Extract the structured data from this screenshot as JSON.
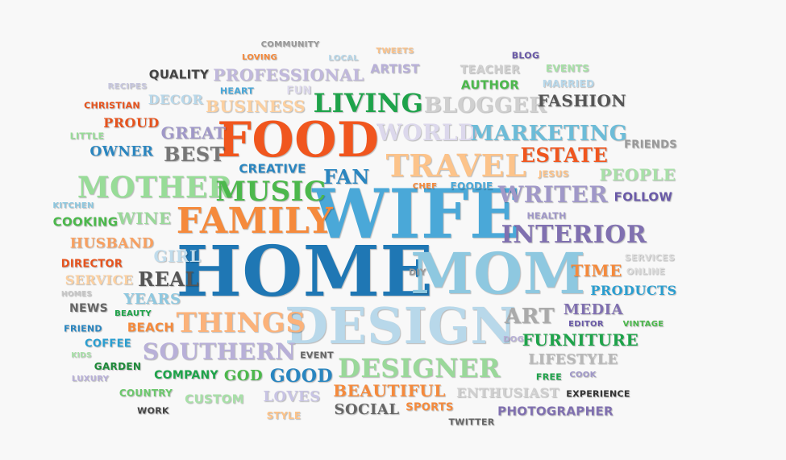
{
  "words": [
    {
      "text": "HOME",
      "color": "#1f77b4"
    },
    {
      "text": "WIFE",
      "color": "#4aa8d8"
    },
    {
      "text": "MOM",
      "color": "#8ec8e0"
    },
    {
      "text": "DESIGN",
      "color": "#b8d8ea"
    },
    {
      "text": "FOOD",
      "color": "#f0561e"
    },
    {
      "text": "FAMILY",
      "color": "#f58a3c"
    },
    {
      "text": "TRAVEL",
      "color": "#fcc38a"
    },
    {
      "text": "MOTHER",
      "color": "#98dc98"
    },
    {
      "text": "MUSIC",
      "color": "#4cb84c"
    },
    {
      "text": "THINGS",
      "color": "#fbb27a"
    },
    {
      "text": "SOUTHERN",
      "color": "#b8b0d8"
    },
    {
      "text": "DESIGNER",
      "color": "#9ad89a"
    },
    {
      "text": "INTERIOR",
      "color": "#8070b0"
    },
    {
      "text": "WRITER",
      "color": "#a098c8"
    },
    {
      "text": "LIVING",
      "color": "#1ea34a"
    },
    {
      "text": "BLOGGER",
      "color": "#d0d0d0"
    },
    {
      "text": "WORLD",
      "color": "#dcd8ec"
    },
    {
      "text": "MARKETING",
      "color": "#6cbcd8"
    },
    {
      "text": "ESTATE",
      "color": "#f0561e"
    },
    {
      "text": "PEOPLE",
      "color": "#a8e0a8"
    },
    {
      "text": "FASHION",
      "color": "#555555"
    },
    {
      "text": "PROFESSIONAL",
      "color": "#c0b8dc"
    },
    {
      "text": "BUSINESS",
      "color": "#fcd0a0"
    },
    {
      "text": "GREAT",
      "color": "#a098c8"
    },
    {
      "text": "BEST",
      "color": "#777777"
    },
    {
      "text": "FAN",
      "color": "#2a86c0"
    },
    {
      "text": "CREATIVE",
      "color": "#2a86c0"
    },
    {
      "text": "PROUD",
      "color": "#e6531d"
    },
    {
      "text": "OWNER",
      "color": "#2a86c0"
    },
    {
      "text": "QUALITY",
      "color": "#444444"
    },
    {
      "text": "DECOR",
      "color": "#b8d8ea"
    },
    {
      "text": "WINE",
      "color": "#9ad89a"
    },
    {
      "text": "HUSBAND",
      "color": "#f8a060"
    },
    {
      "text": "GIRL",
      "color": "#c0dcec"
    },
    {
      "text": "REAL",
      "color": "#555555"
    },
    {
      "text": "YEARS",
      "color": "#8ec8e0"
    },
    {
      "text": "SERVICE",
      "color": "#fcd0a0"
    },
    {
      "text": "DIRECTOR",
      "color": "#e6531d"
    },
    {
      "text": "COOKING",
      "color": "#4cb84c"
    },
    {
      "text": "KITCHEN",
      "color": "#8ec8e0"
    },
    {
      "text": "LITTLE",
      "color": "#98dc98"
    },
    {
      "text": "CHRISTIAN",
      "color": "#e6531d"
    },
    {
      "text": "RECIPES",
      "color": "#c8c8e0"
    },
    {
      "text": "HEART",
      "color": "#4aa8d8"
    },
    {
      "text": "FUN",
      "color": "#dcd8ec"
    },
    {
      "text": "LOVING",
      "color": "#f58a3c"
    },
    {
      "text": "COMMUNITY",
      "color": "#999999"
    },
    {
      "text": "LOCAL",
      "color": "#b8d8ea"
    },
    {
      "text": "TWEETS",
      "color": "#fcc38a"
    },
    {
      "text": "ARTIST",
      "color": "#b8b0d8"
    },
    {
      "text": "TEACHER",
      "color": "#d0d0d0"
    },
    {
      "text": "AUTHOR",
      "color": "#4cb84c"
    },
    {
      "text": "BLOG",
      "color": "#6a5aa8"
    },
    {
      "text": "EVENTS",
      "color": "#a8e0a8"
    },
    {
      "text": "MARRIED",
      "color": "#b8d8ea"
    },
    {
      "text": "FRIENDS",
      "color": "#999999"
    },
    {
      "text": "JESUS",
      "color": "#fcc38a"
    },
    {
      "text": "FOLLOW",
      "color": "#6a5aa8"
    },
    {
      "text": "CHEF",
      "color": "#f58a3c"
    },
    {
      "text": "FOODIE",
      "color": "#4aa8d8"
    },
    {
      "text": "HEALTH",
      "color": "#a098c8"
    },
    {
      "text": "DIY",
      "color": "#999999"
    },
    {
      "text": "SERVICES",
      "color": "#dcdcdc"
    },
    {
      "text": "ONLINE",
      "color": "#dcdcdc"
    },
    {
      "text": "TIME",
      "color": "#f58a3c"
    },
    {
      "text": "PRODUCTS",
      "color": "#2a9ed0"
    },
    {
      "text": "ART",
      "color": "#aaaaaa"
    },
    {
      "text": "MEDIA",
      "color": "#8070b0"
    },
    {
      "text": "EDITOR",
      "color": "#6a5aa8"
    },
    {
      "text": "VINTAGE",
      "color": "#4cb84c"
    },
    {
      "text": "DOG",
      "color": "#b8b0d8"
    },
    {
      "text": "FURNITURE",
      "color": "#1ea34a"
    },
    {
      "text": "LIFESTYLE",
      "color": "#b8b8b8"
    },
    {
      "text": "FREE",
      "color": "#1ea34a"
    },
    {
      "text": "COOK",
      "color": "#a098c8"
    },
    {
      "text": "EXPERIENCE",
      "color": "#333333"
    },
    {
      "text": "PHOTOGRAPHER",
      "color": "#8070b0"
    },
    {
      "text": "ENTHUSIAST",
      "color": "#d0d0d0"
    },
    {
      "text": "BEAUTIFUL",
      "color": "#f58a3c"
    },
    {
      "text": "SPORTS",
      "color": "#f58a3c"
    },
    {
      "text": "TWITTER",
      "color": "#666666"
    },
    {
      "text": "SOCIAL",
      "color": "#666666"
    },
    {
      "text": "LOVES",
      "color": "#c8c4e4"
    },
    {
      "text": "STYLE",
      "color": "#fcc38a"
    },
    {
      "text": "GOOD",
      "color": "#2a86c0"
    },
    {
      "text": "GOD",
      "color": "#4cb84c"
    },
    {
      "text": "COMPANY",
      "color": "#1ea34a"
    },
    {
      "text": "CUSTOM",
      "color": "#a8e0a8"
    },
    {
      "text": "EVENT",
      "color": "#666666"
    },
    {
      "text": "NEWS",
      "color": "#666666"
    },
    {
      "text": "BEAUTY",
      "color": "#1ea34a"
    },
    {
      "text": "BEACH",
      "color": "#f58a3c"
    },
    {
      "text": "HOMES",
      "color": "#c8c8c8"
    },
    {
      "text": "FRIEND",
      "color": "#2a86c0"
    },
    {
      "text": "COFFEE",
      "color": "#2a9ed0"
    },
    {
      "text": "KIDS",
      "color": "#a8e0a8"
    },
    {
      "text": "GARDEN",
      "color": "#1e8a3a"
    },
    {
      "text": "LUXURY",
      "color": "#b8b0d8"
    },
    {
      "text": "COUNTRY",
      "color": "#6cc86c"
    },
    {
      "text": "WORK",
      "color": "#444444"
    }
  ]
}
